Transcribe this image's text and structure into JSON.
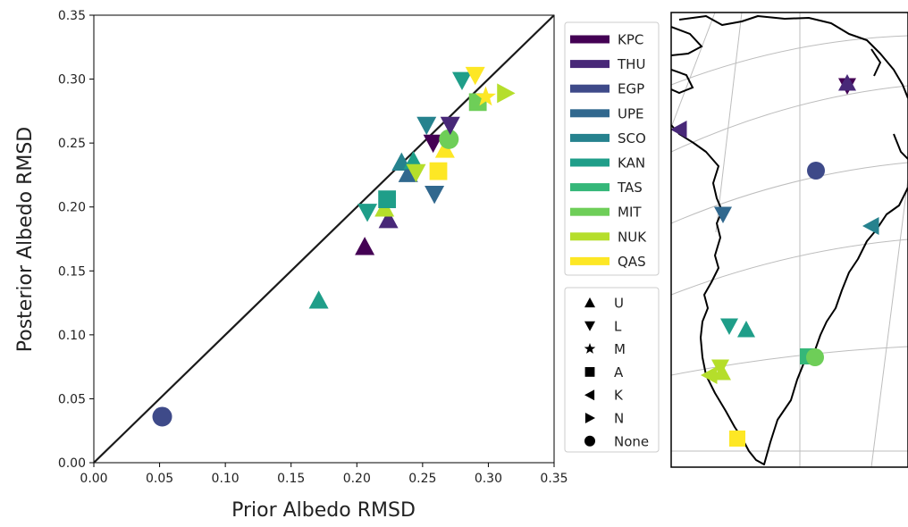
{
  "colors": {
    "KPC": "#440154",
    "THU": "#482878",
    "EGP": "#3e4a89",
    "UPE": "#31688e",
    "SCO": "#26828e",
    "KAN": "#1f9e89",
    "TAS": "#35b779",
    "MIT": "#6ece58",
    "NUK": "#b5de2b",
    "QAS": "#fde725"
  },
  "chart_data": [
    {
      "type": "scatter",
      "xlabel": "Prior Albedo RMSD",
      "ylabel": "Posterior Albedo RMSD",
      "xlim": [
        0,
        0.35
      ],
      "ylim": [
        0,
        0.35
      ],
      "xticks": [
        "0.00",
        "0.05",
        "0.10",
        "0.15",
        "0.20",
        "0.25",
        "0.30",
        "0.35"
      ],
      "yticks": [
        "0.00",
        "0.05",
        "0.10",
        "0.15",
        "0.20",
        "0.25",
        "0.30",
        "0.35"
      ],
      "identity_line": true,
      "grid": false,
      "points": [
        {
          "station": "EGP",
          "marker": "circle",
          "x": 0.052,
          "y": 0.036
        },
        {
          "station": "KAN",
          "marker": "triangle-up",
          "x": 0.171,
          "y": 0.127
        },
        {
          "station": "KPC",
          "marker": "triangle-up",
          "x": 0.206,
          "y": 0.169
        },
        {
          "station": "KAN",
          "marker": "triangle-down",
          "x": 0.208,
          "y": 0.196
        },
        {
          "station": "THU",
          "marker": "triangle-up",
          "x": 0.224,
          "y": 0.19
        },
        {
          "station": "NUK",
          "marker": "triangle-up",
          "x": 0.221,
          "y": 0.199
        },
        {
          "station": "KAN",
          "marker": "square",
          "x": 0.223,
          "y": 0.206
        },
        {
          "station": "SCO",
          "marker": "triangle-up",
          "x": 0.234,
          "y": 0.235
        },
        {
          "station": "UPE",
          "marker": "triangle-up",
          "x": 0.239,
          "y": 0.226
        },
        {
          "station": "KAN",
          "marker": "triangle-up",
          "x": 0.243,
          "y": 0.236
        },
        {
          "station": "NUK",
          "marker": "triangle-down",
          "x": 0.245,
          "y": 0.227
        },
        {
          "station": "UPE",
          "marker": "triangle-down",
          "x": 0.259,
          "y": 0.21
        },
        {
          "station": "SCO",
          "marker": "triangle-down",
          "x": 0.253,
          "y": 0.264
        },
        {
          "station": "KPC",
          "marker": "triangle-down",
          "x": 0.258,
          "y": 0.25
        },
        {
          "station": "QAS",
          "marker": "square",
          "x": 0.262,
          "y": 0.228
        },
        {
          "station": "QAS",
          "marker": "triangle-up",
          "x": 0.267,
          "y": 0.245
        },
        {
          "station": "MIT",
          "marker": "circle",
          "x": 0.27,
          "y": 0.253
        },
        {
          "station": "THU",
          "marker": "triangle-down",
          "x": 0.271,
          "y": 0.264
        },
        {
          "station": "KAN",
          "marker": "triangle-down",
          "x": 0.28,
          "y": 0.299
        },
        {
          "station": "QAS",
          "marker": "triangle-down",
          "x": 0.29,
          "y": 0.303
        },
        {
          "station": "MIT",
          "marker": "square",
          "x": 0.292,
          "y": 0.282
        },
        {
          "station": "QAS",
          "marker": "star",
          "x": 0.298,
          "y": 0.286
        },
        {
          "station": "NUK",
          "marker": "triangle-right",
          "x": 0.313,
          "y": 0.289
        }
      ]
    },
    {
      "type": "map",
      "region": "Greenland",
      "sites": [
        {
          "station": "KPC",
          "marker": "triangle-down",
          "px": 0.66,
          "py": 0.16
        },
        {
          "station": "THU",
          "marker": "triangle-up",
          "px": 0.66,
          "py": 0.16
        },
        {
          "station": "EGP",
          "marker": "circle",
          "px": 0.62,
          "py": 0.35
        },
        {
          "station": "THU",
          "marker": "triangle-left",
          "px": 0.03,
          "py": 0.26
        },
        {
          "station": "UPE",
          "marker": "triangle-down",
          "px": 0.21,
          "py": 0.44
        },
        {
          "station": "SCO",
          "marker": "triangle-left",
          "px": 0.91,
          "py": 0.46
        }
      ]
    }
  ],
  "legend_stations": [
    {
      "key": "KPC",
      "label": "KPC"
    },
    {
      "key": "THU",
      "label": "THU"
    },
    {
      "key": "EGP",
      "label": "EGP"
    },
    {
      "key": "UPE",
      "label": "UPE"
    },
    {
      "key": "SCO",
      "label": "SCO"
    },
    {
      "key": "KAN",
      "label": "KAN"
    },
    {
      "key": "TAS",
      "label": "TAS"
    },
    {
      "key": "MIT",
      "label": "MIT"
    },
    {
      "key": "NUK",
      "label": "NUK"
    },
    {
      "key": "QAS",
      "label": "QAS"
    }
  ],
  "legend_markers": [
    {
      "marker": "triangle-up",
      "label": "U"
    },
    {
      "marker": "triangle-down",
      "label": "L"
    },
    {
      "marker": "star",
      "label": "M"
    },
    {
      "marker": "square",
      "label": "A"
    },
    {
      "marker": "triangle-left",
      "label": "K"
    },
    {
      "marker": "triangle-right",
      "label": "N"
    },
    {
      "marker": "circle",
      "label": "None"
    }
  ],
  "map_sites": [
    {
      "station": "KPC",
      "marker": "triangle-down",
      "x": 948,
      "y": 96
    },
    {
      "station": "THU",
      "marker": "triangle-up",
      "x": 948,
      "y": 93
    },
    {
      "station": "THU",
      "marker": "triangle-left",
      "x": 760,
      "y": 145
    },
    {
      "station": "EGP",
      "marker": "circle",
      "x": 913,
      "y": 191
    },
    {
      "station": "UPE",
      "marker": "triangle-down",
      "x": 809,
      "y": 240
    },
    {
      "station": "SCO",
      "marker": "triangle-left",
      "x": 975,
      "y": 253
    },
    {
      "station": "KAN",
      "marker": "triangle-down",
      "x": 816,
      "y": 365
    },
    {
      "station": "KAN",
      "marker": "triangle-up",
      "x": 835,
      "y": 369
    },
    {
      "station": "TAS",
      "marker": "square",
      "x": 904,
      "y": 399
    },
    {
      "station": "MIT",
      "marker": "circle",
      "x": 912,
      "y": 400
    },
    {
      "station": "NUK",
      "marker": "triangle-left",
      "x": 794,
      "y": 420
    },
    {
      "station": "NUK",
      "marker": "triangle-up",
      "x": 808,
      "y": 417
    },
    {
      "station": "NUK",
      "marker": "triangle-down",
      "x": 806,
      "y": 411
    },
    {
      "station": "QAS",
      "marker": "square",
      "x": 825,
      "y": 491
    }
  ]
}
